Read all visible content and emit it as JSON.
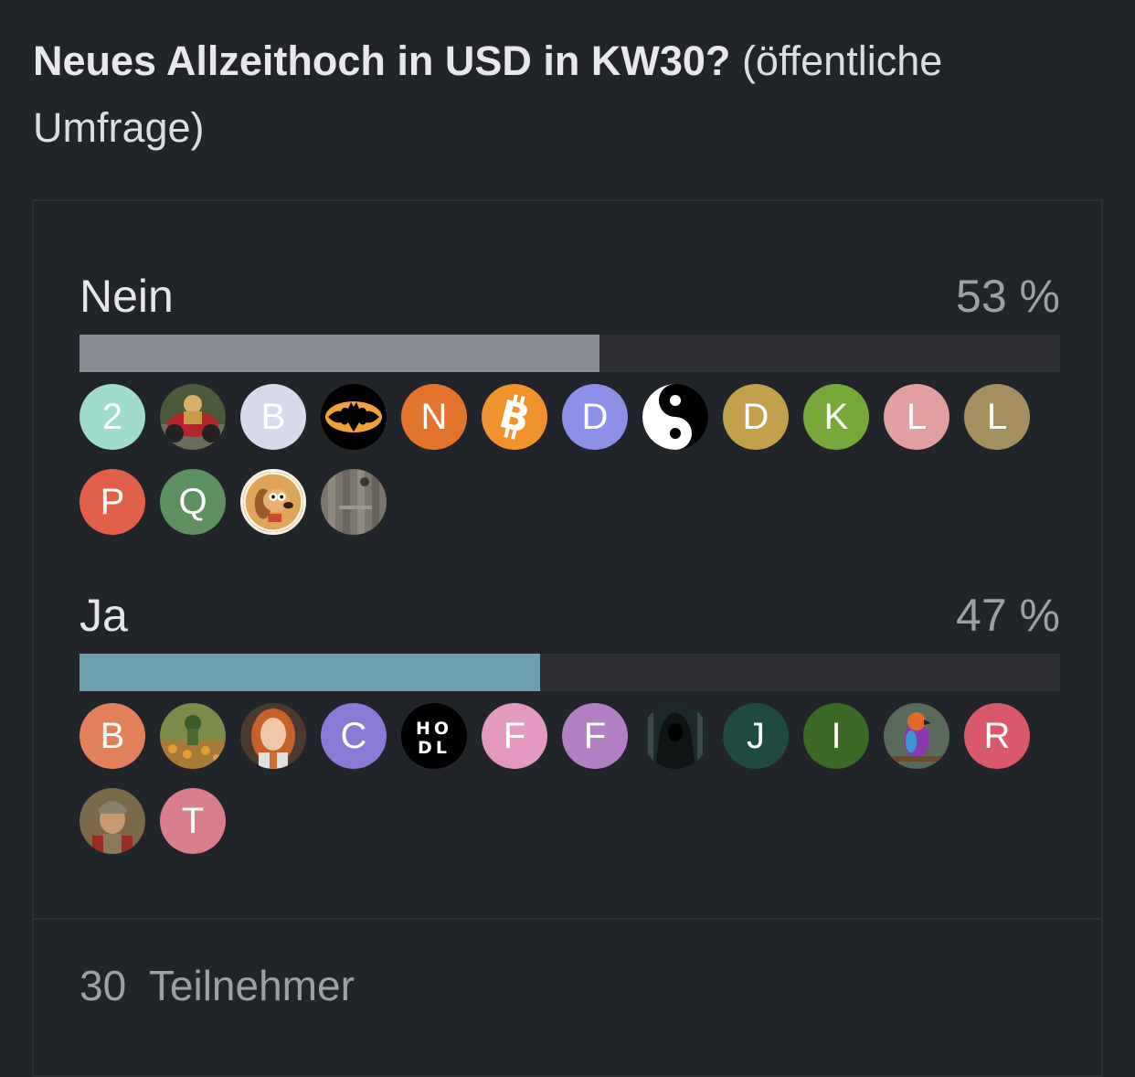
{
  "poll": {
    "question": "Neues Allzeithoch in USD in KW30?",
    "kind": "(öffentliche Umfrage)",
    "participants_count": "30",
    "participants_label": "Teilnehmer"
  },
  "options": [
    {
      "label": "Nein",
      "percent_text": "53 %",
      "percent": 53,
      "bar_color": "#878993",
      "voters": [
        {
          "initial": "2",
          "color": "#9fdccb"
        },
        {
          "icon": "motorcycle-photo-avatar"
        },
        {
          "initial": "B",
          "color": "#d9d9ee"
        },
        {
          "icon": "batman-logo-avatar"
        },
        {
          "initial": "N",
          "color": "#e3742e"
        },
        {
          "icon": "bitcoin-logo-avatar"
        },
        {
          "initial": "D",
          "color": "#8c90e6"
        },
        {
          "icon": "yin-yang-avatar"
        },
        {
          "initial": "D",
          "color": "#c2a04c"
        },
        {
          "initial": "K",
          "color": "#76a83a"
        },
        {
          "initial": "L",
          "color": "#e19f9f"
        },
        {
          "initial": "L",
          "color": "#a48f5e"
        },
        {
          "initial": "P",
          "color": "#e0604a"
        },
        {
          "initial": "Q",
          "color": "#5e9160"
        },
        {
          "icon": "cartoon-dog-avatar"
        },
        {
          "icon": "wooden-door-photo-avatar"
        }
      ]
    },
    {
      "label": "Ja",
      "percent_text": "47 %",
      "percent": 47,
      "bar_color": "#6ca0b0",
      "voters": [
        {
          "initial": "B",
          "color": "#e2805a"
        },
        {
          "icon": "farm-painting-avatar"
        },
        {
          "icon": "woman-portrait-avatar"
        },
        {
          "initial": "C",
          "color": "#8a7ad6"
        },
        {
          "icon": "hodl-logo-avatar",
          "line1": "HO",
          "line2": "DL"
        },
        {
          "initial": "F",
          "color": "#e49ac0"
        },
        {
          "initial": "F",
          "color": "#b27fc2"
        },
        {
          "icon": "hooded-figure-avatar"
        },
        {
          "initial": "J",
          "color": "#1e4a3f"
        },
        {
          "initial": "I",
          "color": "#3a6a26"
        },
        {
          "icon": "colorful-bird-avatar"
        },
        {
          "initial": "R",
          "color": "#d9586a"
        },
        {
          "icon": "roman-soldier-avatar"
        },
        {
          "initial": "T",
          "color": "#d97f8c"
        }
      ]
    }
  ]
}
